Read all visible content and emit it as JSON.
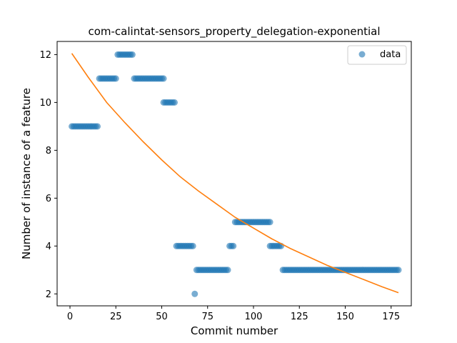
{
  "chart_data": {
    "type": "scatter",
    "title": "com-calintat-sensors_property_delegation-exponential",
    "xlabel": "Commit number",
    "ylabel": "Number of instance of a feature",
    "xlim": [
      -7,
      186
    ],
    "ylim": [
      1.5,
      12.55
    ],
    "xticks": [
      0,
      25,
      50,
      75,
      100,
      125,
      150,
      175
    ],
    "yticks": [
      2,
      4,
      6,
      8,
      10,
      12
    ],
    "grid": false,
    "legend": {
      "position": "top-right",
      "entries": [
        "data"
      ]
    },
    "colors": {
      "points": "#1f77b4",
      "fit": "#ff7f0e"
    },
    "series": [
      {
        "name": "data",
        "kind": "scatter",
        "runs": [
          {
            "x_start": 1,
            "x_end": 15,
            "y": 9
          },
          {
            "x_start": 16,
            "x_end": 25,
            "y": 11
          },
          {
            "x_start": 26,
            "x_end": 34,
            "y": 12
          },
          {
            "x_start": 35,
            "x_end": 51,
            "y": 11
          },
          {
            "x_start": 51,
            "x_end": 57,
            "y": 10
          },
          {
            "x_start": 58,
            "x_end": 67,
            "y": 4
          },
          {
            "x_start": 68,
            "x_end": 68,
            "y": 2
          },
          {
            "x_start": 69,
            "x_end": 86,
            "y": 3
          },
          {
            "x_start": 87,
            "x_end": 89,
            "y": 4
          },
          {
            "x_start": 90,
            "x_end": 109,
            "y": 5
          },
          {
            "x_start": 109,
            "x_end": 115,
            "y": 4
          },
          {
            "x_start": 116,
            "x_end": 179,
            "y": 3
          }
        ]
      },
      {
        "name": "",
        "kind": "line",
        "model": "exponential",
        "x": [
          1,
          10,
          20,
          30,
          40,
          50,
          60,
          70,
          80,
          90,
          100,
          110,
          120,
          130,
          140,
          150,
          160,
          170,
          179
        ],
        "y": [
          12.05,
          11.05,
          10.0,
          9.15,
          8.35,
          7.6,
          6.9,
          6.3,
          5.75,
          5.2,
          4.75,
          4.3,
          3.9,
          3.55,
          3.2,
          2.9,
          2.6,
          2.3,
          2.05
        ]
      }
    ]
  }
}
